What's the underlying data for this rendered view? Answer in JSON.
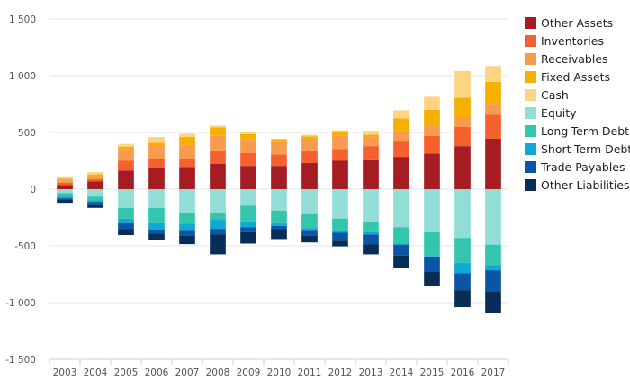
{
  "chart_data": {
    "type": "bar",
    "stacked": true,
    "diverging": true,
    "categories": [
      "2003",
      "2004",
      "2005",
      "2006",
      "2007",
      "2008",
      "2009",
      "2010",
      "2011",
      "2012",
      "2013",
      "2014",
      "2015",
      "2016",
      "2017"
    ],
    "ylim": [
      -1500,
      1500
    ],
    "yticks": [
      1500,
      1000,
      500,
      0,
      -500,
      -1000,
      -1500
    ],
    "ytick_labels": [
      "1 500",
      "1 000",
      "500",
      "0",
      "-500",
      "-1 000",
      "-1 500"
    ],
    "grid": true,
    "legend_position": "right",
    "series": [
      {
        "name": "Other Assets",
        "color": "#a51c22",
        "values": [
          38,
          70,
          165,
          185,
          195,
          225,
          205,
          205,
          230,
          250,
          255,
          285,
          315,
          380,
          445
        ]
      },
      {
        "name": "Inventories",
        "color": "#f5602f",
        "values": [
          20,
          20,
          85,
          80,
          75,
          110,
          115,
          100,
          105,
          105,
          125,
          135,
          155,
          170,
          210
        ]
      },
      {
        "name": "Receivables",
        "color": "#f99b4e",
        "values": [
          20,
          25,
          100,
          120,
          120,
          135,
          115,
          110,
          110,
          120,
          85,
          90,
          85,
          85,
          90
        ]
      },
      {
        "name": "Fixed Assets",
        "color": "#f6b000",
        "values": [
          15,
          15,
          25,
          25,
          70,
          75,
          50,
          25,
          20,
          25,
          15,
          115,
          145,
          170,
          200
        ]
      },
      {
        "name": "Cash",
        "color": "#fdd481",
        "values": [
          20,
          20,
          25,
          50,
          30,
          15,
          15,
          5,
          15,
          20,
          35,
          70,
          115,
          235,
          140
        ]
      },
      {
        "name": "Equity",
        "color": "#92ddd5",
        "values": [
          -35,
          -65,
          -165,
          -165,
          -205,
          -205,
          -145,
          -190,
          -220,
          -260,
          -290,
          -335,
          -380,
          -430,
          -490
        ]
      },
      {
        "name": "Long-Term Debt",
        "color": "#33c6ad",
        "values": [
          -30,
          -35,
          -95,
          -135,
          -100,
          -60,
          -140,
          -110,
          -125,
          -110,
          -90,
          -145,
          -210,
          -220,
          -180
        ]
      },
      {
        "name": "Short-Term Debt",
        "color": "#10a9d4",
        "values": [
          -15,
          -15,
          -40,
          -55,
          -55,
          -85,
          -50,
          -25,
          -15,
          -15,
          -20,
          -10,
          -5,
          -90,
          -45
        ]
      },
      {
        "name": "Trade Payables",
        "color": "#0c55a6",
        "values": [
          -15,
          -25,
          -50,
          -35,
          -50,
          -50,
          -45,
          -25,
          -50,
          -70,
          -85,
          -95,
          -130,
          -150,
          -190
        ]
      },
      {
        "name": "Other Liabilities",
        "color": "#082e57",
        "values": [
          -25,
          -25,
          -55,
          -60,
          -75,
          -175,
          -100,
          -90,
          -60,
          -50,
          -90,
          -110,
          -125,
          -150,
          -185
        ]
      }
    ]
  }
}
